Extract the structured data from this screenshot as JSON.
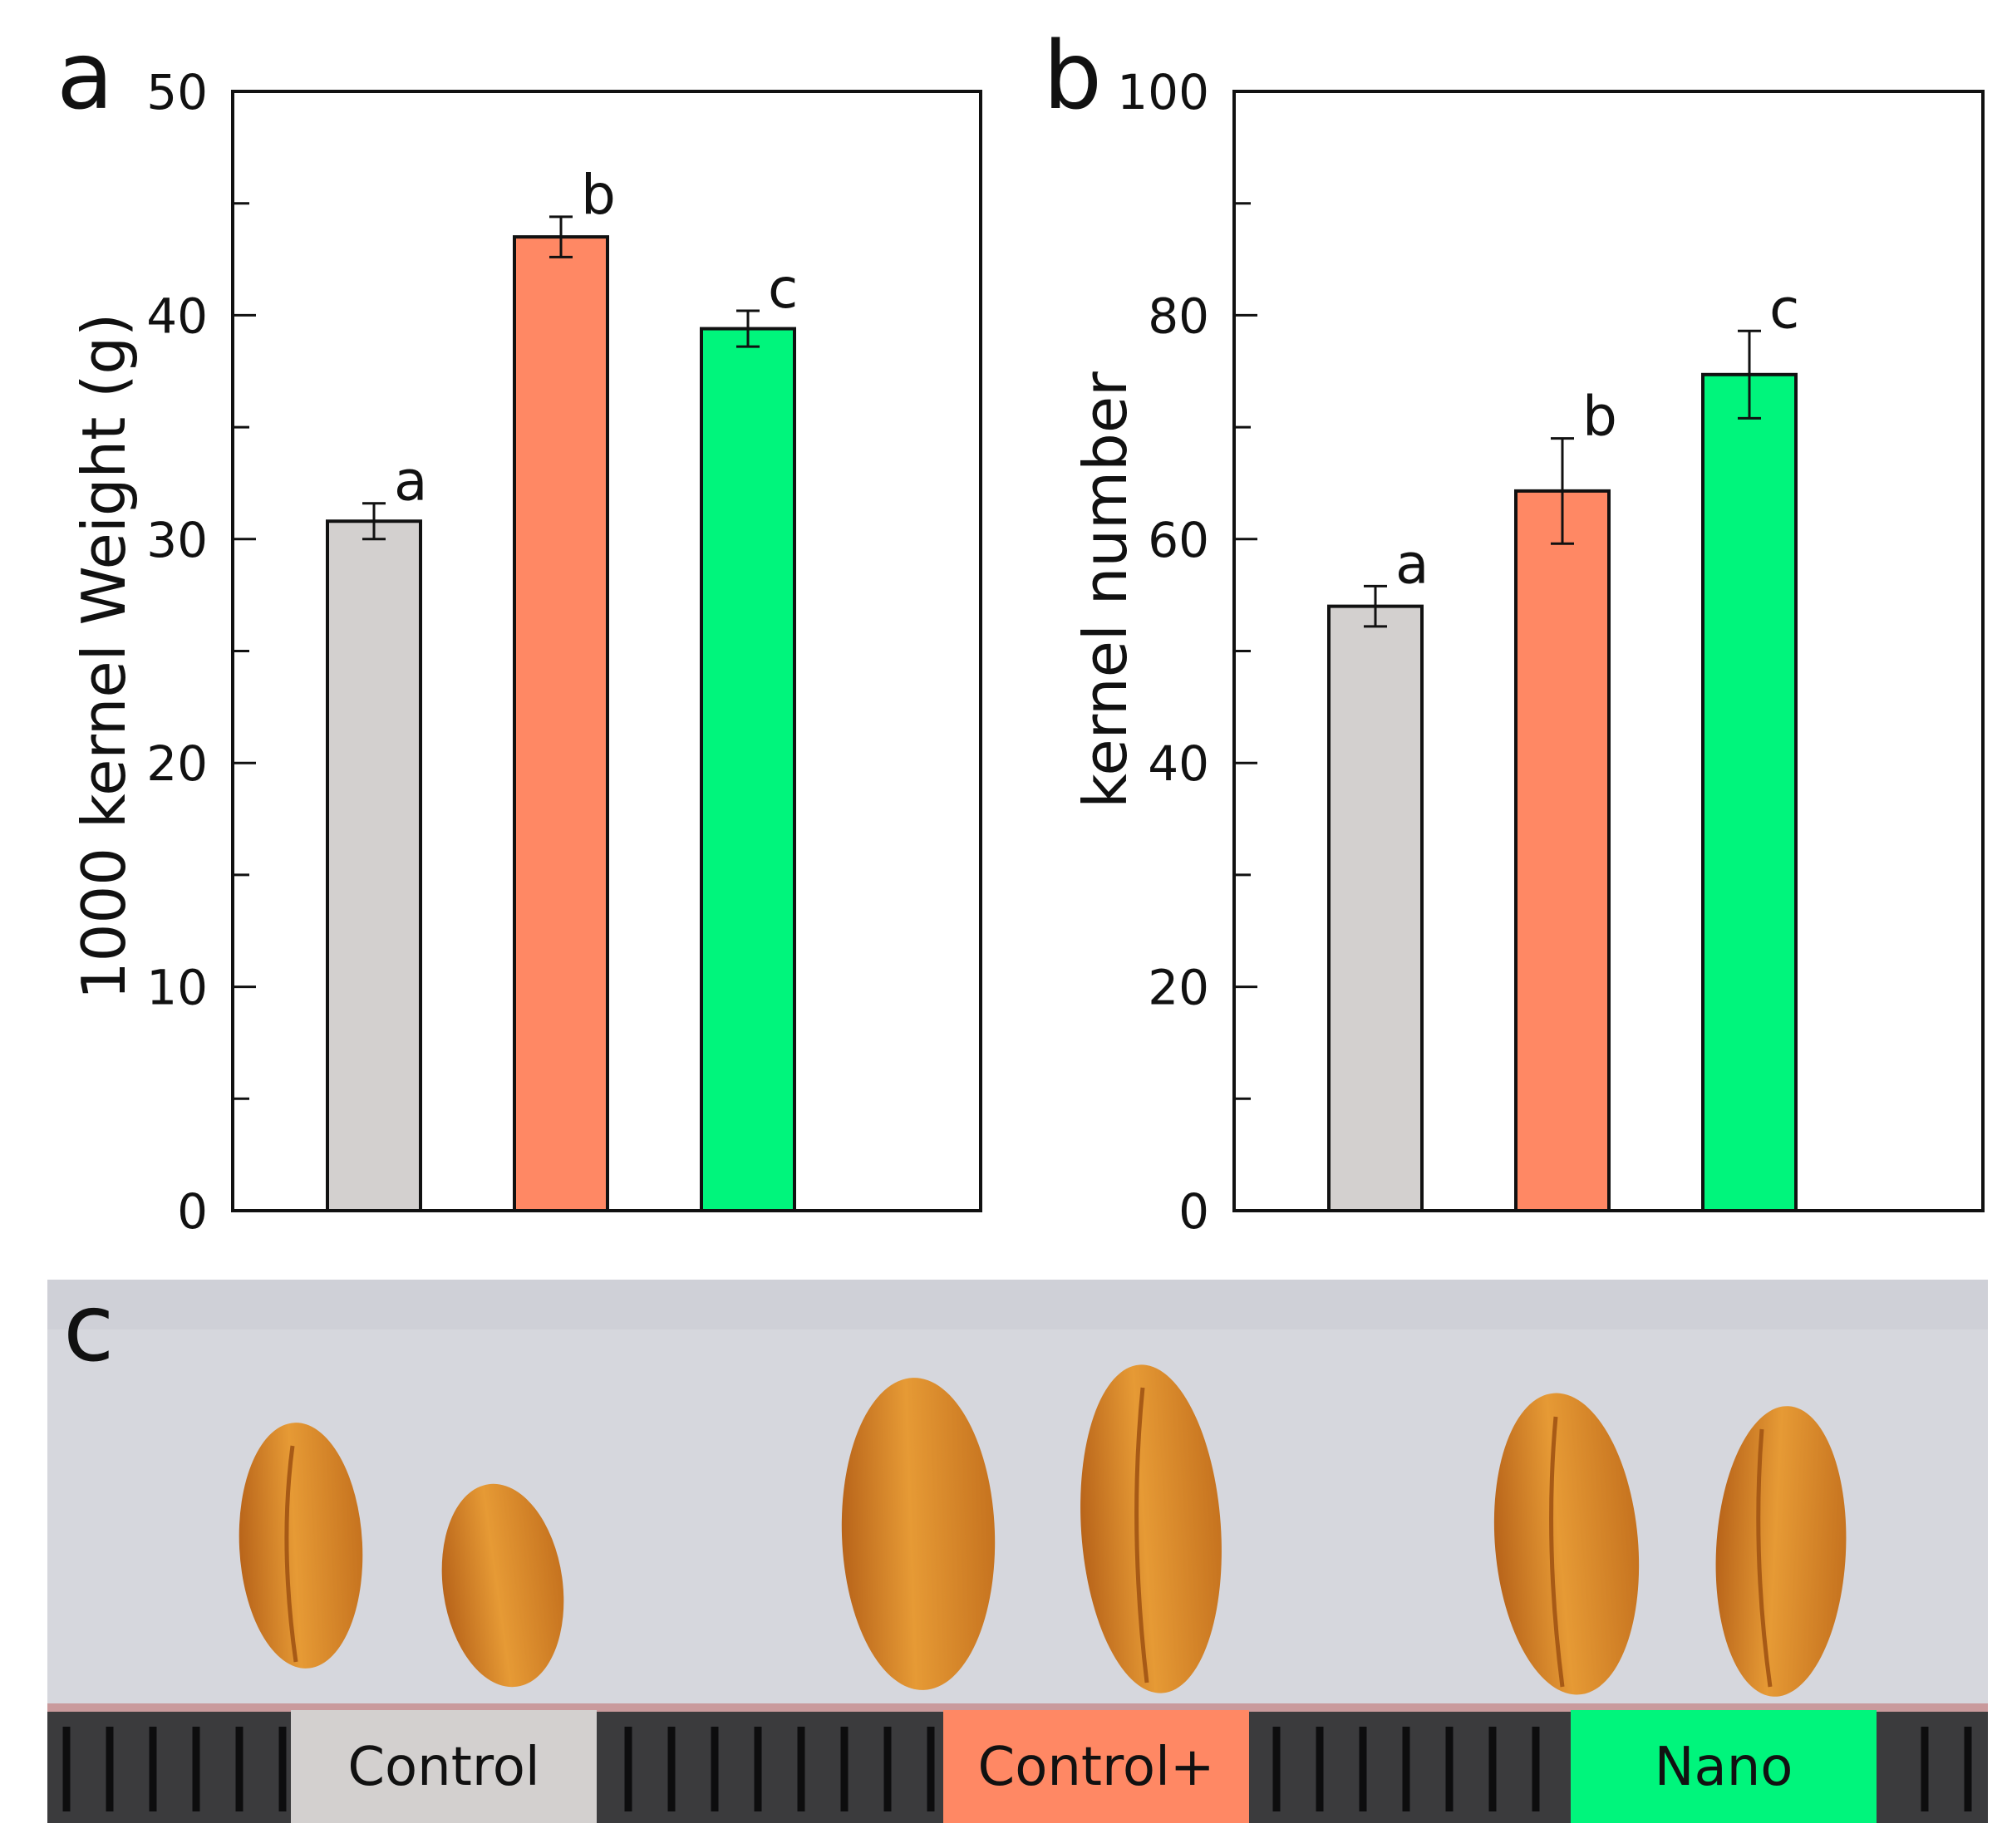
{
  "colors": {
    "Control": "#d3d0cf",
    "Control+": "#ff8864",
    "Nano": "#00f57c",
    "photo_background": "#d6d7dd",
    "ruler": "#3b3b3d"
  },
  "chart_data": [
    {
      "type": "bar",
      "panel_label": "a",
      "categories": [
        "Control",
        "Control+",
        "Nano"
      ],
      "values": [
        30.8,
        43.5,
        39.4
      ],
      "errors": [
        0.8,
        0.9,
        0.8
      ],
      "significance_letters": [
        "a",
        "b",
        "c"
      ],
      "ylabel": "1000 kernel Weight (g)",
      "ylim": [
        0,
        50
      ],
      "yticks": [
        0,
        10,
        20,
        30,
        40,
        50
      ],
      "ytick_labels": [
        "0",
        "10",
        "20",
        "30",
        "40",
        "50"
      ]
    },
    {
      "type": "bar",
      "panel_label": "b",
      "categories": [
        "Control",
        "Control+",
        "Nano"
      ],
      "values": [
        54,
        64.3,
        74.7
      ],
      "errors": [
        1.8,
        4.7,
        3.9
      ],
      "significance_letters": [
        "a",
        "b",
        "c"
      ],
      "ylabel": "kernel number",
      "ylim": [
        0,
        100
      ],
      "yticks": [
        0,
        20,
        40,
        60,
        80,
        100
      ],
      "ytick_labels": [
        "0",
        "20",
        "40",
        "60",
        "80",
        "100"
      ]
    }
  ],
  "photo": {
    "panel_label": "c",
    "legend": [
      "Control",
      "Control+",
      "Nano"
    ],
    "kernel_icon": "wheat-kernel-icon"
  }
}
